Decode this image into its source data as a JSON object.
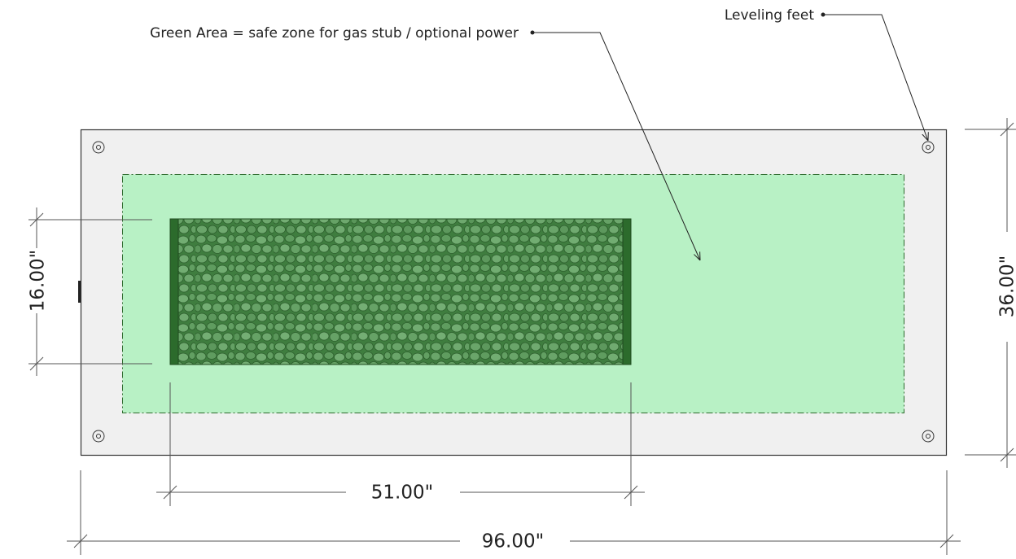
{
  "annotations": [
    {
      "text": "Green Area = safe zone for gas stub / optional power"
    },
    {
      "text": "Leveling feet"
    }
  ],
  "dimensions": [
    {
      "label": "16.00\""
    },
    {
      "label": "36.00\""
    },
    {
      "label": "51.00\""
    },
    {
      "label": "96.00\""
    }
  ]
}
